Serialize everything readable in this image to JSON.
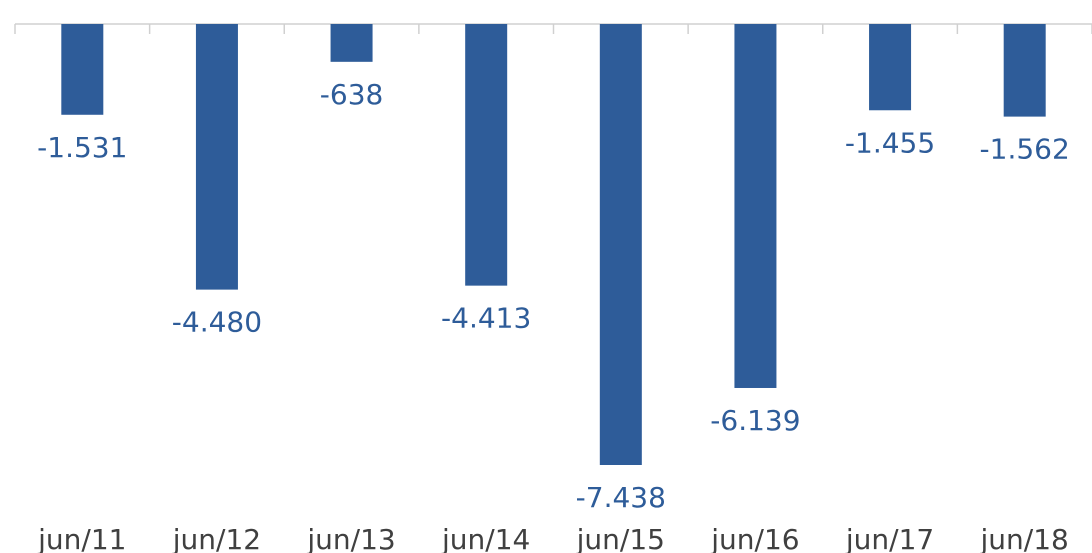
{
  "chart_data": {
    "type": "bar",
    "categories": [
      "jun/11",
      "jun/12",
      "jun/13",
      "jun/14",
      "jun/15",
      "jun/16",
      "jun/17",
      "jun/18"
    ],
    "values": [
      -1531,
      -4480,
      -638,
      -4413,
      -7438,
      -6139,
      -1455,
      -1562
    ],
    "data_labels": [
      "-1.531",
      "-4.480",
      "-638",
      "-4.413",
      "-7.438",
      "-6.139",
      "-1.455",
      "-1.562"
    ],
    "ylim": [
      -7438,
      0
    ],
    "grid": false,
    "legend": "none"
  },
  "colors": {
    "bar": "#2e5c99",
    "label": "#2e5c99",
    "axis": "#d0d0d0",
    "category_text": "#404040"
  }
}
